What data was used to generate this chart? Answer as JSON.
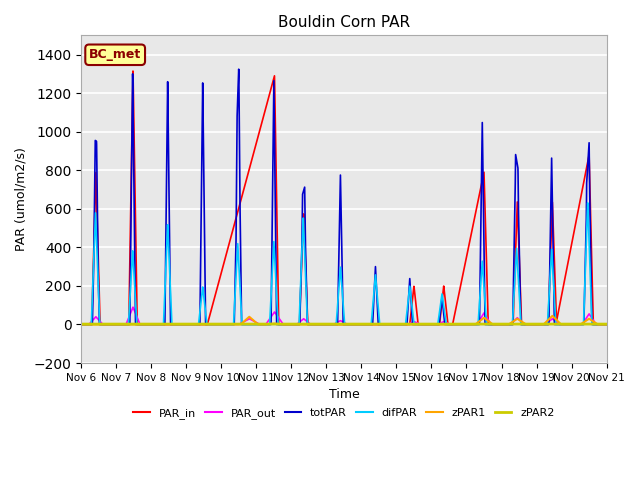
{
  "title": "Bouldin Corn PAR",
  "ylabel": "PAR (umol/m2/s)",
  "xlabel": "Time",
  "ylim": [
    -200,
    1500
  ],
  "yticks": [
    -200,
    0,
    200,
    400,
    600,
    800,
    1000,
    1200,
    1400
  ],
  "xtick_labels": [
    "Nov 6",
    "Nov 7",
    "Nov 8",
    "Nov 9",
    "Nov 10",
    "Nov 11",
    "Nov 12",
    "Nov 13",
    "Nov 14",
    "Nov 15",
    "Nov 16",
    "Nov 17",
    "Nov 18",
    "Nov 19",
    "Nov 20",
    "Nov 21"
  ],
  "legend_label": "BC_met",
  "series": {
    "PAR_in": {
      "color": "#FF0000",
      "lw": 1.2
    },
    "PAR_out": {
      "color": "#FF00FF",
      "lw": 1.2
    },
    "totPAR": {
      "color": "#0000CC",
      "lw": 1.2
    },
    "difPAR": {
      "color": "#00CCFF",
      "lw": 1.2
    },
    "zPAR1": {
      "color": "#FFA500",
      "lw": 1.5
    },
    "zPAR2": {
      "color": "#CCCC00",
      "lw": 2.0
    }
  },
  "bg_color": "#E8E8E8"
}
